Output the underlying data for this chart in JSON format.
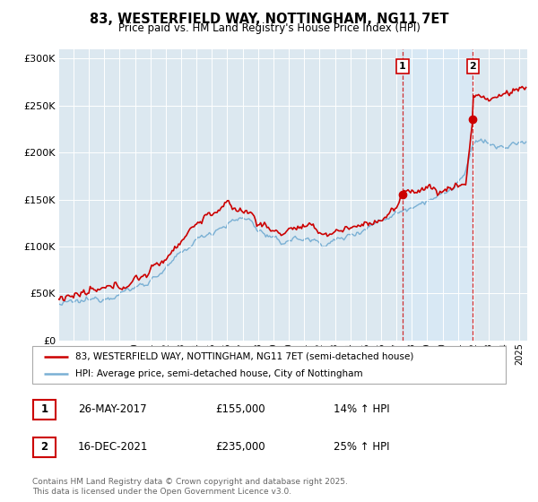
{
  "title": "83, WESTERFIELD WAY, NOTTINGHAM, NG11 7ET",
  "subtitle": "Price paid vs. HM Land Registry's House Price Index (HPI)",
  "legend_line1": "83, WESTERFIELD WAY, NOTTINGHAM, NG11 7ET (semi-detached house)",
  "legend_line2": "HPI: Average price, semi-detached house, City of Nottingham",
  "footnote": "Contains HM Land Registry data © Crown copyright and database right 2025.\nThis data is licensed under the Open Government Licence v3.0.",
  "sale1_label": "1",
  "sale1_date": "26-MAY-2017",
  "sale1_price": "£155,000",
  "sale1_hpi": "14% ↑ HPI",
  "sale1_year": 2017.39,
  "sale1_value": 155000,
  "sale2_label": "2",
  "sale2_date": "16-DEC-2021",
  "sale2_price": "£235,000",
  "sale2_hpi": "25% ↑ HPI",
  "sale2_year": 2021.96,
  "sale2_value": 235000,
  "red_color": "#cc0000",
  "blue_color": "#7ab0d4",
  "shade_color": "#d8e8f4",
  "background_color": "#dce8f0",
  "ylim": [
    0,
    310000
  ],
  "yticks": [
    0,
    50000,
    100000,
    150000,
    200000,
    250000,
    300000
  ],
  "ytick_labels": [
    "£0",
    "£50K",
    "£100K",
    "£150K",
    "£200K",
    "£250K",
    "£300K"
  ],
  "xmin": 1995,
  "xmax": 2025.5
}
